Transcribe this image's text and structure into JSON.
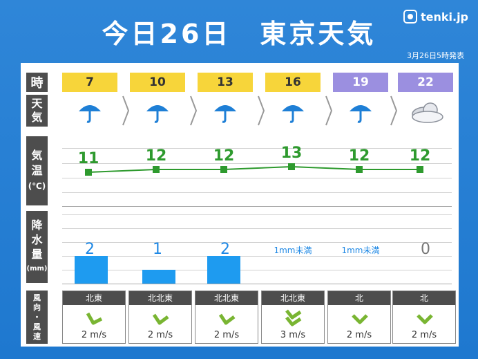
{
  "header": {
    "title": "今日26日　東京天気",
    "logo": "tenki.jp",
    "issued": "3月26日5時発表"
  },
  "labels": {
    "time": "時",
    "weather": [
      "天",
      "気"
    ],
    "temp": [
      "気",
      "温",
      "(℃)"
    ],
    "precip": [
      "降",
      "水",
      "量",
      "(mm)"
    ],
    "wind": [
      "風",
      "向",
      "・",
      "風",
      "速"
    ]
  },
  "times": [
    "7",
    "10",
    "13",
    "16",
    "19",
    "22"
  ],
  "weather_icons": [
    "umbrella-icon",
    "umbrella-icon",
    "umbrella-icon",
    "umbrella-icon",
    "umbrella-icon",
    "cloud-icon"
  ],
  "temps": [
    "11",
    "12",
    "12",
    "13",
    "12",
    "12"
  ],
  "precip": [
    "2",
    "1",
    "2",
    "1mm未満",
    "1mm未満",
    "0"
  ],
  "wind_dirs": [
    "北東",
    "北北東",
    "北北東",
    "北北東",
    "北",
    "北"
  ],
  "wind_speeds": [
    "2 m/s",
    "2 m/s",
    "2 m/s",
    "3 m/s",
    "2 m/s",
    "2 m/s"
  ],
  "colors": {
    "accent": "#1e78cf",
    "temp": "#2e9a2e",
    "precip": "#1e9bf0",
    "time_day": "#f7d53a",
    "time_night": "#9b8fe0"
  }
}
